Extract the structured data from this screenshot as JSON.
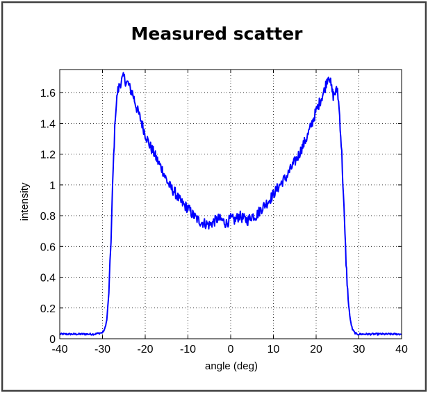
{
  "chart_data": {
    "type": "line",
    "title": "Measured scatter",
    "xlabel": "angle (deg)",
    "ylabel": "intensity",
    "xlim": [
      -40,
      40
    ],
    "ylim": [
      0,
      1.75
    ],
    "xticks": [
      -40,
      -30,
      -20,
      -10,
      0,
      10,
      20,
      30,
      40
    ],
    "yticks": [
      0,
      0.2,
      0.4,
      0.6,
      0.8,
      1,
      1.2,
      1.4,
      1.6
    ],
    "grid": true,
    "line_color": "#0000ff",
    "series": [
      {
        "x": [
          -40,
          -36,
          -32,
          -30,
          -29.5,
          -29,
          -28.5,
          -28,
          -27.5,
          -27,
          -26.5,
          -26,
          -25.5,
          -25,
          -24.5,
          -24,
          -23.5,
          -23,
          -22,
          -21,
          -20,
          -19,
          -18,
          -17,
          -16,
          -15,
          -14,
          -13,
          -12,
          -11,
          -10,
          -9,
          -8,
          -7,
          -6,
          -5,
          -4,
          -3,
          -2,
          -1,
          0,
          1,
          2,
          3,
          4,
          5,
          6,
          7,
          8,
          9,
          10,
          11,
          12,
          13,
          14,
          15,
          16,
          17,
          18,
          19,
          20,
          21,
          22,
          22.5,
          23,
          23.5,
          24,
          24.5,
          25,
          25.5,
          26,
          26.5,
          27,
          27.5,
          28,
          28.5,
          29,
          29.5,
          30,
          32,
          36,
          40
        ],
        "y": [
          0.03,
          0.03,
          0.03,
          0.04,
          0.06,
          0.12,
          0.3,
          0.65,
          1.1,
          1.45,
          1.6,
          1.65,
          1.68,
          1.7,
          1.67,
          1.66,
          1.62,
          1.6,
          1.5,
          1.42,
          1.33,
          1.26,
          1.21,
          1.15,
          1.1,
          1.03,
          0.98,
          0.95,
          0.9,
          0.87,
          0.85,
          0.81,
          0.78,
          0.76,
          0.75,
          0.74,
          0.76,
          0.78,
          0.77,
          0.75,
          0.78,
          0.77,
          0.8,
          0.78,
          0.77,
          0.8,
          0.8,
          0.84,
          0.87,
          0.9,
          0.94,
          0.98,
          1.02,
          1.05,
          1.1,
          1.15,
          1.2,
          1.26,
          1.32,
          1.4,
          1.48,
          1.55,
          1.62,
          1.68,
          1.72,
          1.64,
          1.58,
          1.6,
          1.62,
          1.45,
          1.2,
          0.85,
          0.5,
          0.25,
          0.12,
          0.06,
          0.04,
          0.03,
          0.03,
          0.03,
          0.03,
          0.03
        ]
      }
    ]
  }
}
